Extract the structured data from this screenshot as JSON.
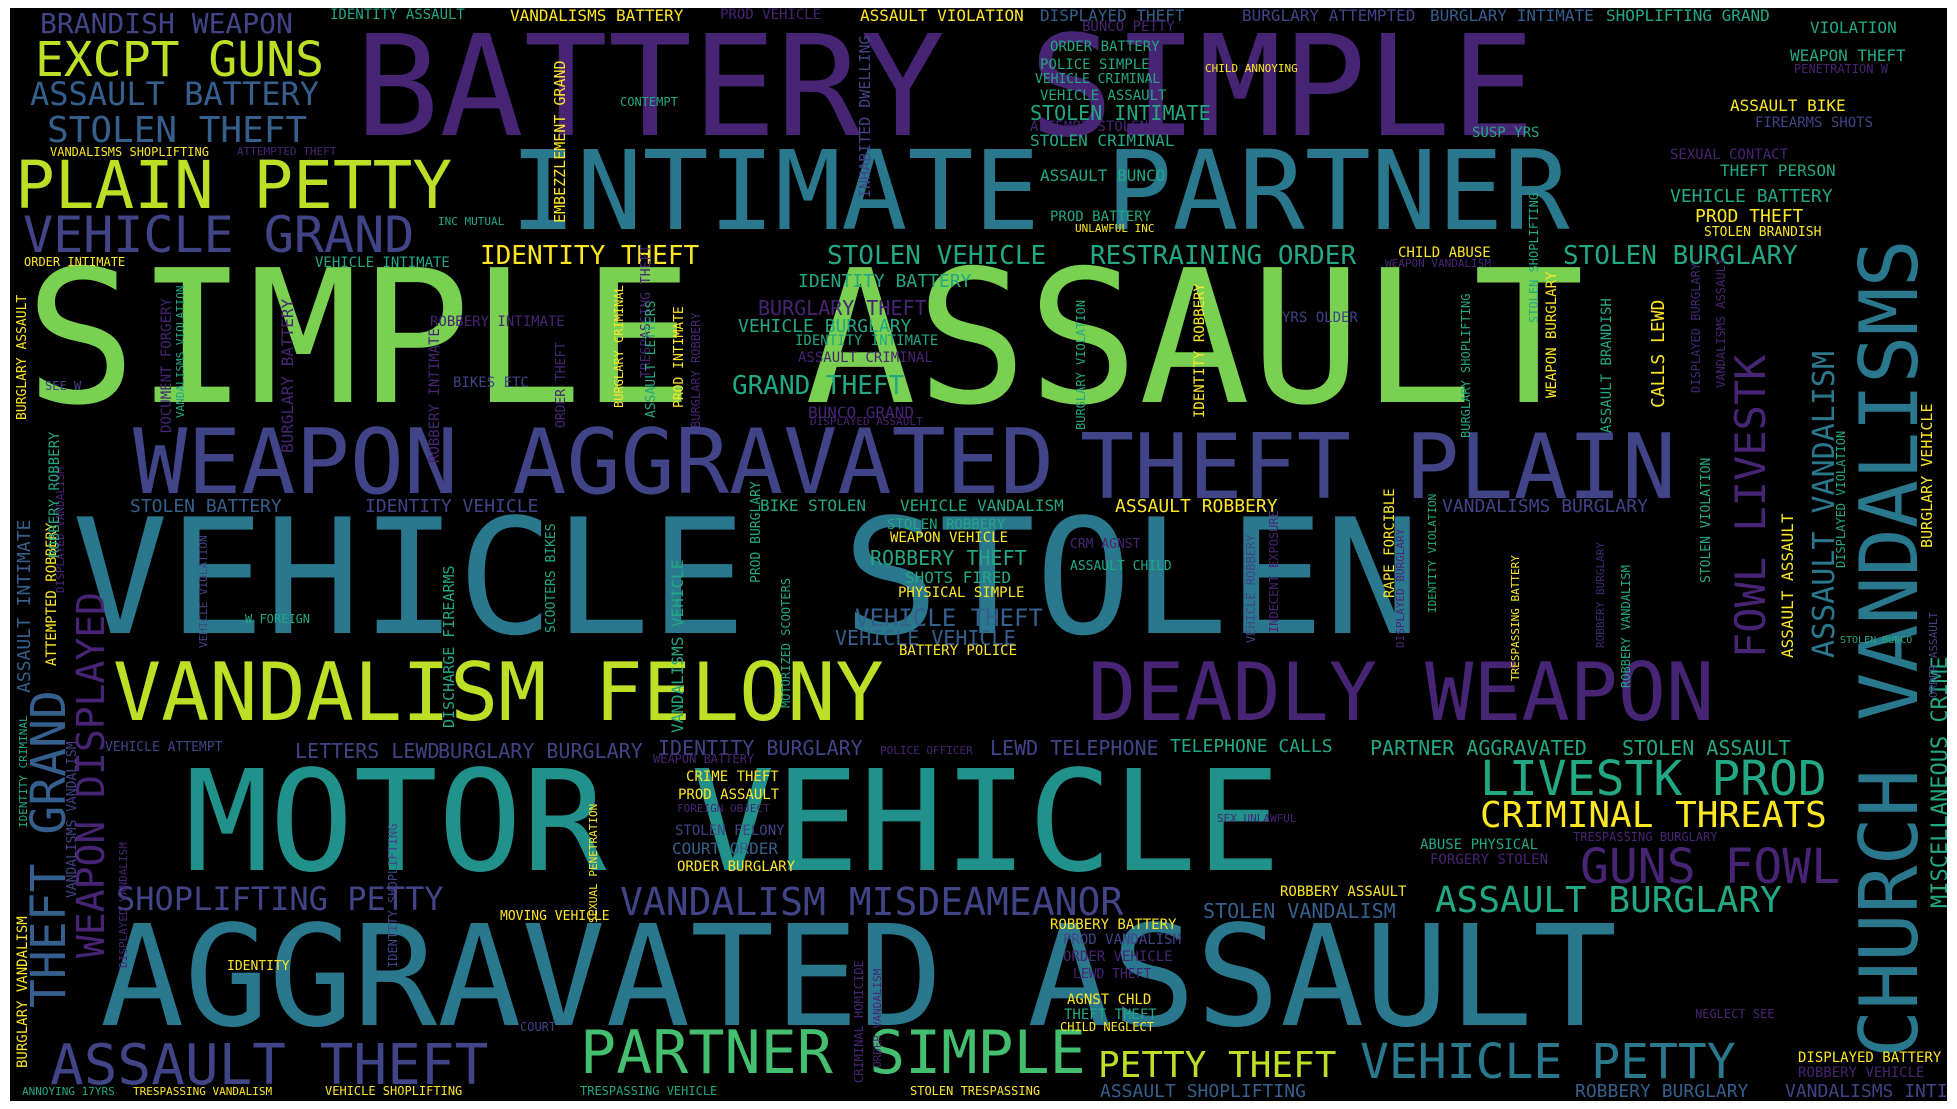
{
  "palette": {
    "purple": "#482475",
    "indigo": "#414487",
    "blue": "#355f8d",
    "teal": "#2a788e",
    "cyan": "#21918c",
    "green_teal": "#22a884",
    "green": "#44bf70",
    "lime": "#7ad151",
    "yellow_green": "#bddf26",
    "yellow": "#fde725"
  },
  "words": [
    {
      "text": "SIMPLE ASSAULT",
      "color": "lime"
    },
    {
      "text": "VEHICLE STOLEN",
      "color": "teal"
    },
    {
      "text": "BATTERY SIMPLE",
      "color": "purple"
    },
    {
      "text": "MOTOR VEHICLE",
      "color": "cyan"
    },
    {
      "text": "AGGRAVATED ASSAULT",
      "color": "teal"
    },
    {
      "text": "INTIMATE PARTNER",
      "color": "teal"
    },
    {
      "text": "CHURCH VANDALISMS",
      "color": "teal"
    },
    {
      "text": "WEAPON AGGRAVATED",
      "color": "indigo"
    },
    {
      "text": "THEFT PLAIN",
      "color": "indigo"
    },
    {
      "text": "VANDALISM FELONY",
      "color": "yellow_green"
    },
    {
      "text": "DEADLY WEAPON",
      "color": "purple"
    },
    {
      "text": "PLAIN PETTY",
      "color": "yellow_green"
    },
    {
      "text": "VEHICLE GRAND",
      "color": "indigo"
    },
    {
      "text": "EXCPT GUNS",
      "color": "yellow_green"
    },
    {
      "text": "ASSAULT BATTERY",
      "color": "blue"
    },
    {
      "text": "STOLEN THEFT",
      "color": "blue"
    },
    {
      "text": "BRANDISH WEAPON",
      "color": "indigo"
    },
    {
      "text": "PARTNER SIMPLE",
      "color": "green"
    },
    {
      "text": "ASSAULT THEFT",
      "color": "indigo"
    },
    {
      "text": "VEHICLE PETTY",
      "color": "teal"
    },
    {
      "text": "PETTY THEFT",
      "color": "yellow_green"
    },
    {
      "text": "LIVESTK PROD",
      "color": "green_teal"
    },
    {
      "text": "CRIMINAL THREATS",
      "color": "yellow"
    },
    {
      "text": "GUNS FOWL",
      "color": "purple"
    },
    {
      "text": "ASSAULT BURGLARY",
      "color": "green_teal"
    },
    {
      "text": "VANDALISM MISDEAMEANOR",
      "color": "indigo"
    },
    {
      "text": "SHOPLIFTING PETTY",
      "color": "indigo"
    },
    {
      "text": "THEFT GRAND",
      "color": "blue"
    },
    {
      "text": "WEAPON DISPLAYED",
      "color": "purple"
    },
    {
      "text": "FOWL LIVESTK",
      "color": "purple"
    },
    {
      "text": "ASSAULT VANDALISM",
      "color": "teal"
    },
    {
      "text": "MISCELLANEOUS CRIME",
      "color": "green_teal"
    },
    {
      "text": "IDENTITY THEFT",
      "color": "yellow"
    },
    {
      "text": "STOLEN VEHICLE",
      "color": "green_teal"
    },
    {
      "text": "RESTRAINING ORDER",
      "color": "green_teal"
    },
    {
      "text": "STOLEN BURGLARY",
      "color": "green_teal"
    },
    {
      "text": "GRAND THEFT",
      "color": "green_teal"
    },
    {
      "text": "BURGLARY THEFT",
      "color": "purple"
    },
    {
      "text": "VEHICLE BURGLARY",
      "color": "green_teal"
    },
    {
      "text": "IDENTITY BATTERY",
      "color": "green_teal"
    },
    {
      "text": "STOLEN BATTERY",
      "color": "blue"
    },
    {
      "text": "IDENTITY VEHICLE",
      "color": "indigo"
    },
    {
      "text": "BIKE STOLEN",
      "color": "green_teal"
    },
    {
      "text": "VEHICLE VANDALISM",
      "color": "green_teal"
    },
    {
      "text": "ASSAULT ROBBERY",
      "color": "yellow"
    },
    {
      "text": "VANDALISMS BURGLARY",
      "color": "indigo"
    },
    {
      "text": "VEHICLE THEFT",
      "color": "blue"
    },
    {
      "text": "VEHICLE VEHICLE",
      "color": "blue"
    },
    {
      "text": "ROBBERY THEFT",
      "color": "green_teal"
    },
    {
      "text": "STOLEN INTIMATE",
      "color": "green_teal"
    },
    {
      "text": "STOLEN CRIMINAL",
      "color": "green_teal"
    },
    {
      "text": "ASSAULT BUNCO",
      "color": "green_teal"
    },
    {
      "text": "VEHICLE BATTERY",
      "color": "green_teal"
    },
    {
      "text": "THEFT PERSON",
      "color": "green_teal"
    },
    {
      "text": "PROD THEFT",
      "color": "yellow"
    },
    {
      "text": "PARTNER AGGRAVATED",
      "color": "green_teal"
    },
    {
      "text": "STOLEN ASSAULT",
      "color": "green_teal"
    },
    {
      "text": "TELEPHONE CALLS",
      "color": "green_teal"
    },
    {
      "text": "LEWD TELEPHONE",
      "color": "indigo"
    },
    {
      "text": "BURGLARY BURGLARY",
      "color": "indigo"
    },
    {
      "text": "IDENTITY BURGLARY",
      "color": "indigo"
    },
    {
      "text": "LETTERS LEWD",
      "color": "indigo"
    },
    {
      "text": "STOLEN VANDALISM",
      "color": "blue"
    },
    {
      "text": "ASSAULT SHOPLIFTING",
      "color": "blue"
    },
    {
      "text": "ROBBERY BURGLARY",
      "color": "blue"
    },
    {
      "text": "VANDALISMS INTIMATE",
      "color": "indigo"
    },
    {
      "text": "VIOLATION",
      "color": "green_teal"
    },
    {
      "text": "WEAPON THEFT",
      "color": "green_teal"
    },
    {
      "text": "SHOPLIFTING GRAND",
      "color": "green_teal"
    },
    {
      "text": "BURGLARY INTIMATE",
      "color": "blue"
    },
    {
      "text": "BURGLARY ATTEMPTED",
      "color": "indigo"
    },
    {
      "text": "ASSAULT VIOLATION",
      "color": "yellow"
    },
    {
      "text": "DISPLAYED THEFT",
      "color": "blue"
    },
    {
      "text": "IDENTITY ASSAULT",
      "color": "green_teal"
    },
    {
      "text": "VANDALISMS BATTERY",
      "color": "yellow"
    },
    {
      "text": "PROD VEHICLE",
      "color": "purple"
    },
    {
      "text": "BUNCO PETTY",
      "color": "purple"
    },
    {
      "text": "ORDER BATTERY",
      "color": "green_teal"
    },
    {
      "text": "POLICE SIMPLE",
      "color": "green_teal"
    },
    {
      "text": "VEHICLE CRIMINAL",
      "color": "green_teal"
    },
    {
      "text": "VEHICLE ASSAULT",
      "color": "green_teal"
    },
    {
      "text": "ATTEMPT STOLEN",
      "color": "purple"
    },
    {
      "text": "ASSAULT BIKE",
      "color": "yellow"
    },
    {
      "text": "FIREARMS SHOTS",
      "color": "indigo"
    },
    {
      "text": "SEXUAL CONTACT",
      "color": "purple"
    },
    {
      "text": "STOLEN BRANDISH",
      "color": "yellow"
    },
    {
      "text": "CHILD ABUSE",
      "color": "yellow"
    },
    {
      "text": "PROD BATTERY",
      "color": "green_teal"
    },
    {
      "text": "VEHICLE INTIMATE",
      "color": "green_teal"
    },
    {
      "text": "IDENTITY INTIMATE",
      "color": "green_teal"
    },
    {
      "text": "ASSAULT CRIMINAL",
      "color": "purple"
    },
    {
      "text": "BUNCO GRAND",
      "color": "purple"
    },
    {
      "text": "ROBBERY INTIMATE",
      "color": "purple"
    },
    {
      "text": "YRS OLDER",
      "color": "indigo"
    },
    {
      "text": "SUSP YRS",
      "color": "green_teal"
    },
    {
      "text": "CONTEMPT",
      "color": "green_teal"
    },
    {
      "text": "VANDALISMS SHOPLIFTING",
      "color": "yellow"
    },
    {
      "text": "ATTEMPTED THEFT",
      "color": "purple"
    },
    {
      "text": "ORDER INTIMATE",
      "color": "yellow"
    },
    {
      "text": "INC MUTUAL",
      "color": "green_teal"
    },
    {
      "text": "UNLAWFUL INC",
      "color": "yellow"
    },
    {
      "text": "CHILD ANNOYING",
      "color": "yellow"
    },
    {
      "text": "PENETRATION W",
      "color": "purple"
    },
    {
      "text": "SEE W",
      "color": "indigo"
    },
    {
      "text": "BIKES ETC",
      "color": "indigo"
    },
    {
      "text": "DISPLAYED ASSAULT",
      "color": "purple"
    },
    {
      "text": "WEAPON VANDALISM",
      "color": "purple"
    },
    {
      "text": "WEAPON VEHICLE",
      "color": "yellow"
    },
    {
      "text": "STOLEN ROBBERY",
      "color": "green_teal"
    },
    {
      "text": "CRM AGNST",
      "color": "purple"
    },
    {
      "text": "ASSAULT CHILD",
      "color": "green_teal"
    },
    {
      "text": "SHOTS FIRED",
      "color": "green_teal"
    },
    {
      "text": "PHYSICAL SIMPLE",
      "color": "yellow"
    },
    {
      "text": "BATTERY POLICE",
      "color": "yellow"
    },
    {
      "text": "W FOREIGN",
      "color": "green_teal"
    },
    {
      "text": "VEHICLE ATTEMPT",
      "color": "indigo"
    },
    {
      "text": "WEAPON BATTERY",
      "color": "purple"
    },
    {
      "text": "POLICE OFFICER",
      "color": "purple"
    },
    {
      "text": "CRIME THEFT",
      "color": "yellow"
    },
    {
      "text": "PROD ASSAULT",
      "color": "yellow"
    },
    {
      "text": "FOREIGN OBJECT",
      "color": "purple"
    },
    {
      "text": "STOLEN FELONY",
      "color": "indigo"
    },
    {
      "text": "COURT ORDER",
      "color": "blue"
    },
    {
      "text": "ORDER BURGLARY",
      "color": "yellow"
    },
    {
      "text": "MOVING VEHICLE",
      "color": "yellow"
    },
    {
      "text": "SEX UNLAWFUL",
      "color": "purple"
    },
    {
      "text": "TRESPASSING BURGLARY",
      "color": "purple"
    },
    {
      "text": "ABUSE PHYSICAL",
      "color": "green_teal"
    },
    {
      "text": "FORGERY STOLEN",
      "color": "purple"
    },
    {
      "text": "ROBBERY ASSAULT",
      "color": "yellow"
    },
    {
      "text": "ROBBERY BATTERY",
      "color": "yellow"
    },
    {
      "text": "PROD VANDALISM",
      "color": "indigo"
    },
    {
      "text": "ORDER VEHICLE",
      "color": "purple"
    },
    {
      "text": "LEWD THEFT",
      "color": "purple"
    },
    {
      "text": "IDENTITY",
      "color": "yellow"
    },
    {
      "text": "AGNST CHLD",
      "color": "yellow"
    },
    {
      "text": "THEFT THEFT",
      "color": "green_teal"
    },
    {
      "text": "CHILD NEGLECT",
      "color": "yellow"
    },
    {
      "text": "COURT",
      "color": "indigo"
    },
    {
      "text": "NEGLECT SEE",
      "color": "purple"
    },
    {
      "text": "DISPLAYED BATTERY",
      "color": "yellow"
    },
    {
      "text": "ROBBERY VEHICLE",
      "color": "purple"
    },
    {
      "text": "ANNOYING 17YRS",
      "color": "green_teal"
    },
    {
      "text": "TRESPASSING VANDALISM",
      "color": "yellow"
    },
    {
      "text": "VEHICLE SHOPLIFTING",
      "color": "yellow"
    },
    {
      "text": "TRESPASSING VEHICLE",
      "color": "green_teal"
    },
    {
      "text": "STOLEN TRESPASSING",
      "color": "yellow"
    },
    {
      "text": "STOLEN BUNCO",
      "color": "green_teal"
    },
    {
      "text": "EMBEZZLEMENT GRAND",
      "color": "yellow"
    },
    {
      "text": "INHABITED DWELLING",
      "color": "indigo"
    },
    {
      "text": "TRESPASSING THEFT",
      "color": "purple"
    },
    {
      "text": "BURGLARY ASSAULT",
      "color": "yellow"
    },
    {
      "text": "DOCUMENT FORGERY",
      "color": "purple"
    },
    {
      "text": "VANDALISMS VIOLATION",
      "color": "green_teal"
    },
    {
      "text": "BURGLARY BATTERY",
      "color": "purple"
    },
    {
      "text": "ROBBERY INTIMATE",
      "color": "purple"
    },
    {
      "text": "ORDER THEFT",
      "color": "purple"
    },
    {
      "text": "BURGLARY CRIMINAL",
      "color": "yellow"
    },
    {
      "text": "ASSAULT LETTERS",
      "color": "green_teal"
    },
    {
      "text": "PROD INTIMATE",
      "color": "yellow"
    },
    {
      "text": "BURGLARY ROBBERY",
      "color": "purple"
    },
    {
      "text": "BURGLARY VIOLATION",
      "color": "green_teal"
    },
    {
      "text": "IDENTITY ROBBERY",
      "color": "yellow"
    },
    {
      "text": "BURGLARY SHOPLIFTING",
      "color": "green_teal"
    },
    {
      "text": "CALLS LEWD",
      "color": "yellow"
    },
    {
      "text": "WEAPON BURGLARY",
      "color": "yellow"
    },
    {
      "text": "STOLEN SHOPLIFTING",
      "color": "green_teal"
    },
    {
      "text": "DISPLAYED BURGLARY",
      "color": "purple"
    },
    {
      "text": "VANDALISMS ASSAULT",
      "color": "purple"
    },
    {
      "text": "ASSAULT BRANDISH",
      "color": "green_teal"
    },
    {
      "text": "BURGLARY VEHICLE",
      "color": "yellow"
    },
    {
      "text": "STOLEN VIOLATION",
      "color": "green_teal"
    },
    {
      "text": "DISPLAYED VIOLATION",
      "color": "green_teal"
    },
    {
      "text": "ORDER ASSAULT",
      "color": "indigo"
    },
    {
      "text": "ASSAULT ASSAULT",
      "color": "yellow"
    },
    {
      "text": "ATTEMPTED ROBBERY",
      "color": "yellow"
    },
    {
      "text": "ASSAULT INTIMATE",
      "color": "blue"
    },
    {
      "text": "DISPLAYED VANDALISM",
      "color": "purple"
    },
    {
      "text": "ROBBERY ROBBERY",
      "color": "green_teal"
    },
    {
      "text": "IDENTITY CRIMINAL",
      "color": "green_teal"
    },
    {
      "text": "VEHICLE VIOLATION",
      "color": "indigo"
    },
    {
      "text": "DISCHARGE FIREARMS",
      "color": "green_teal"
    },
    {
      "text": "SCOOTERS BIKES",
      "color": "green_teal"
    },
    {
      "text": "MOTORIZED SCOOTERS",
      "color": "green_teal"
    },
    {
      "text": "PROD BURGLARY",
      "color": "green_teal"
    },
    {
      "text": "VANDALISMS VEHICLE",
      "color": "green_teal"
    },
    {
      "text": "VEHICLE ROBBERY",
      "color": "indigo"
    },
    {
      "text": "INDECENT EXPOSURE",
      "color": "purple"
    },
    {
      "text": "RAPE FORCIBLE",
      "color": "yellow"
    },
    {
      "text": "DISPLAYED BURGLARY",
      "color": "purple"
    },
    {
      "text": "IDENTITY VIOLATION",
      "color": "green_teal"
    },
    {
      "text": "TRESPASSING BATTERY",
      "color": "yellow"
    },
    {
      "text": "ROBBERY VANDALISM",
      "color": "green_teal"
    },
    {
      "text": "ROBBERY BURGLARY",
      "color": "purple"
    },
    {
      "text": "SEXUAL PENETRATION",
      "color": "yellow"
    },
    {
      "text": "IDENTITY SHOPLIFTING",
      "color": "indigo"
    },
    {
      "text": "CRIMINAL HOMICIDE",
      "color": "purple"
    },
    {
      "text": "ORDER VANDALISM",
      "color": "purple"
    },
    {
      "text": "BURGLARY VANDALISM",
      "color": "yellow"
    },
    {
      "text": "DISPLAYED VANDALISM",
      "color": "purple"
    },
    {
      "text": "VANDALISMS VANDALISM",
      "color": "indigo"
    }
  ]
}
